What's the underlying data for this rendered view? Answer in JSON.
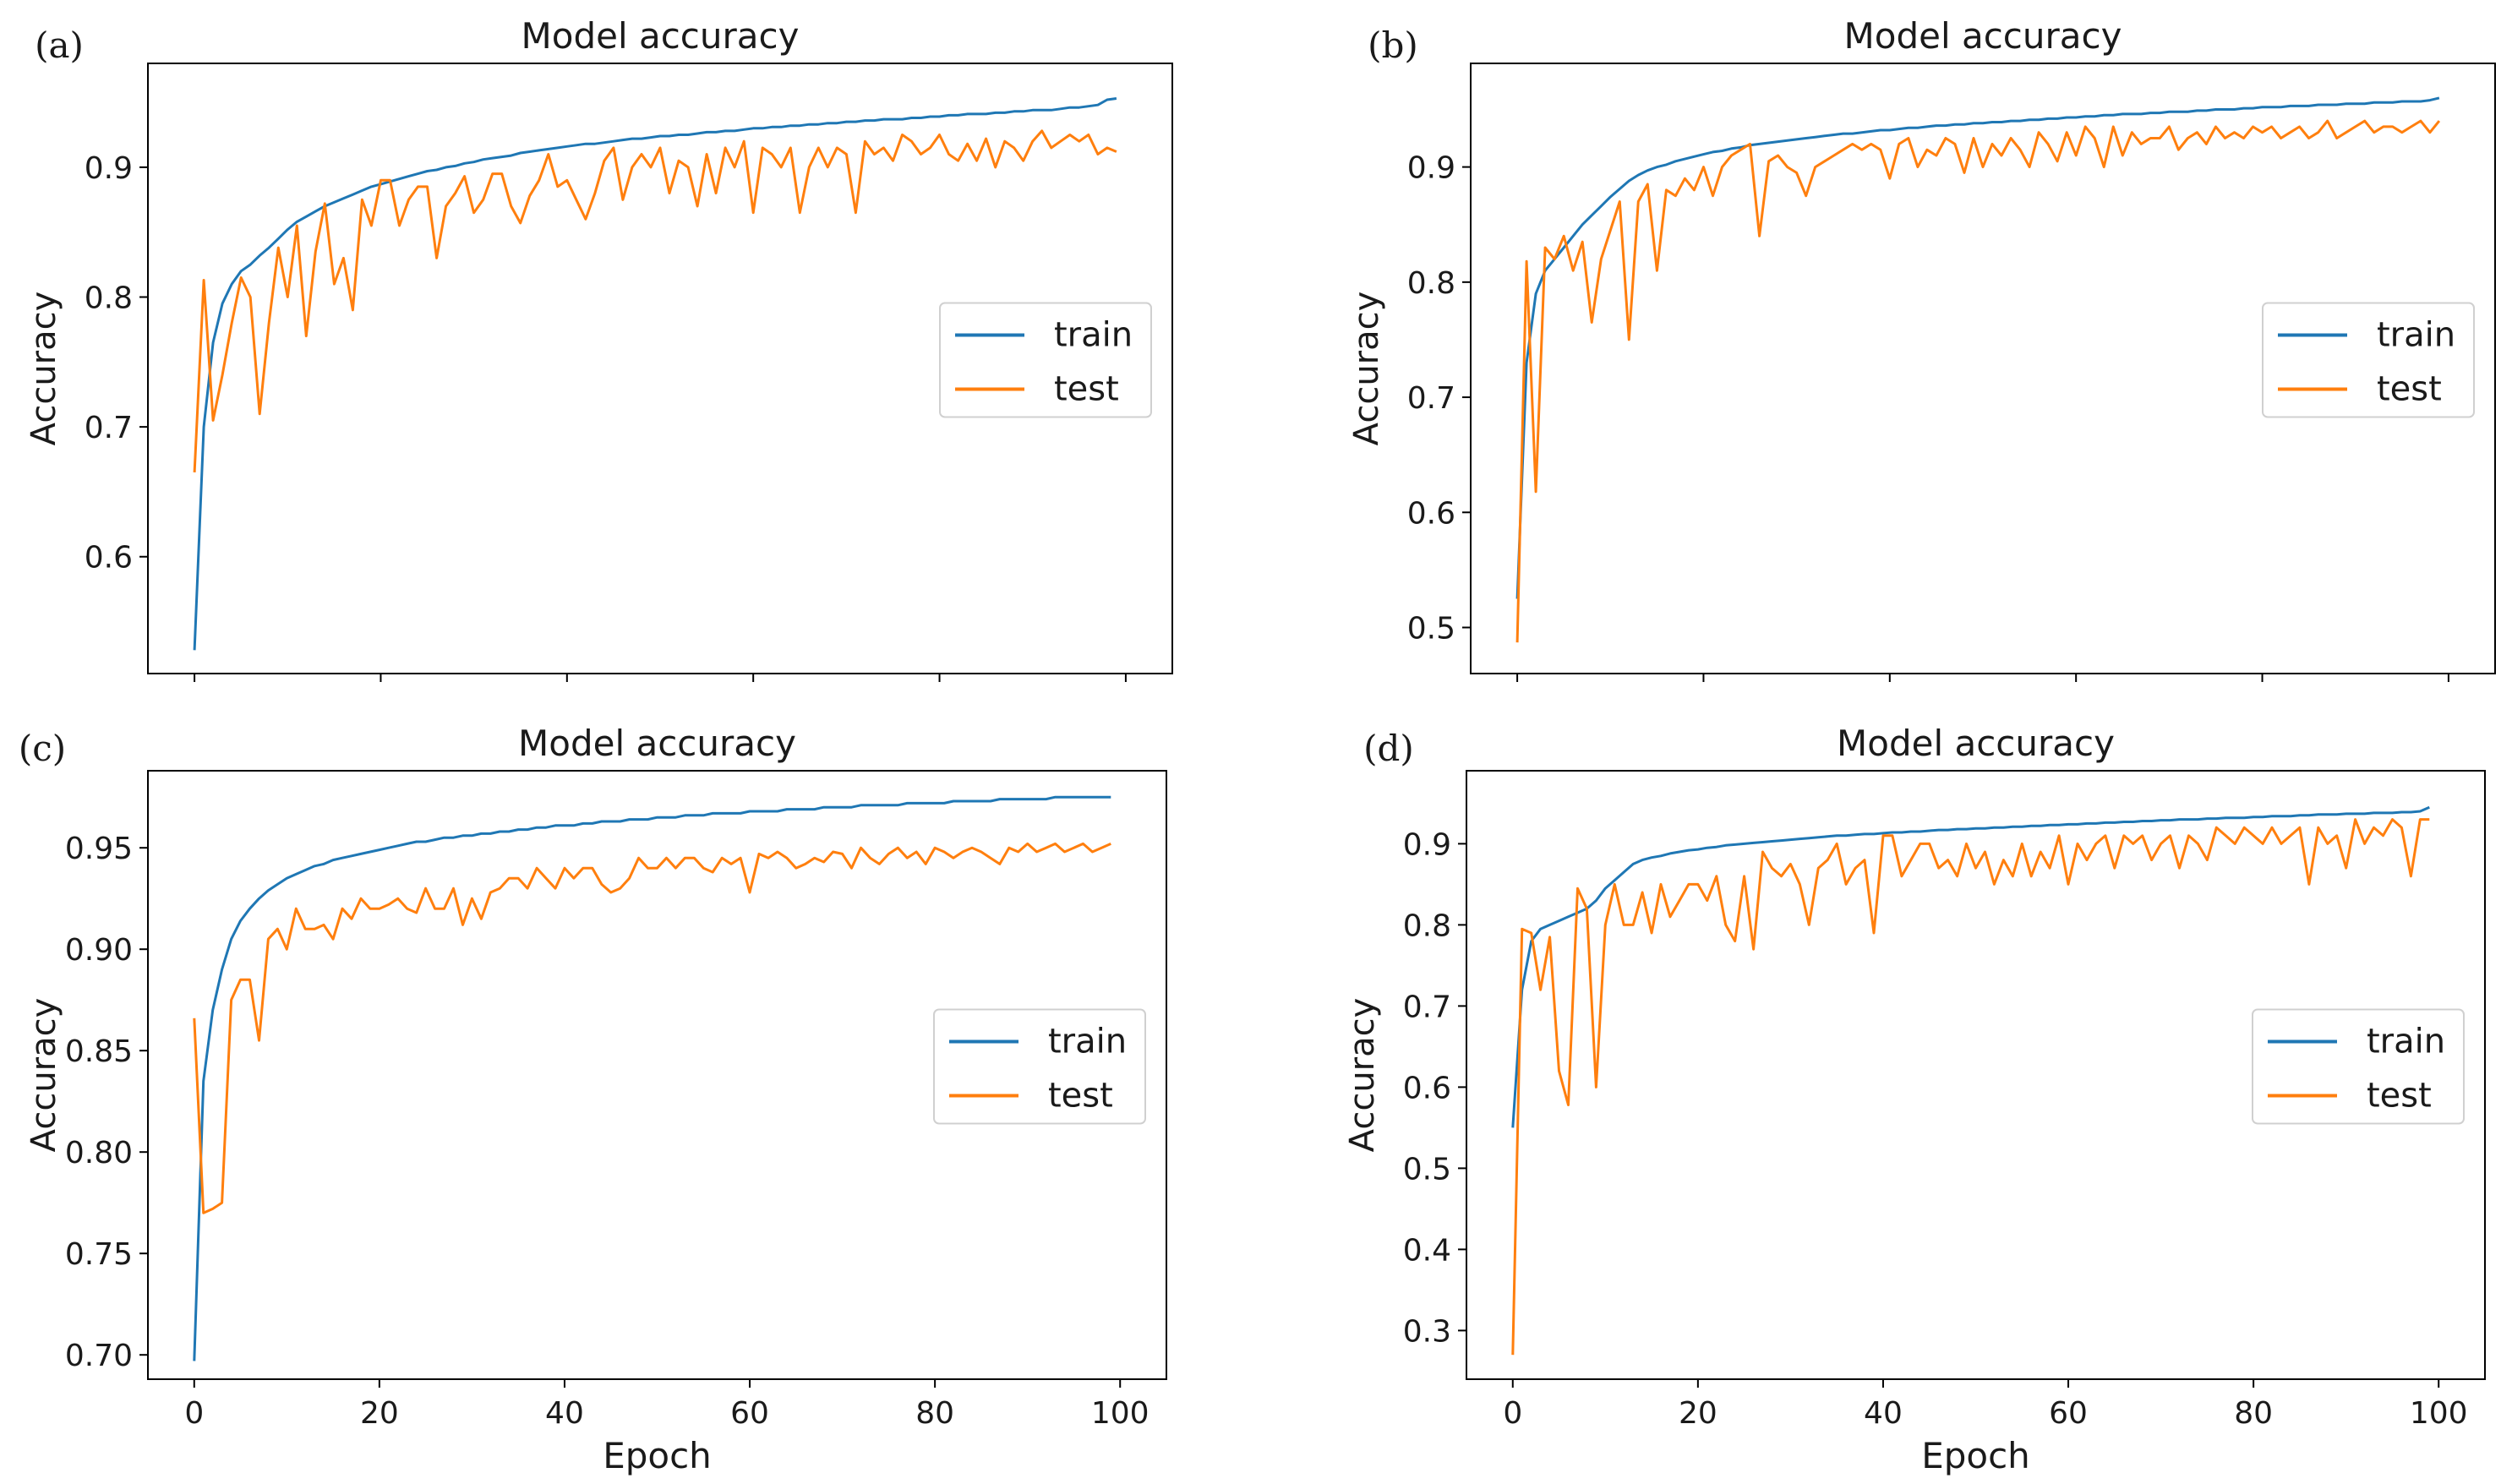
{
  "colors": {
    "train": "#1f77b4",
    "test": "#ff7f0e",
    "axis": "#000000",
    "background": "#ffffff"
  },
  "chart_data": [
    {
      "panel": "(a)",
      "type": "line",
      "title": "Model accuracy",
      "xlabel": "",
      "ylabel": "Accuracy",
      "xlim": [
        -5,
        105
      ],
      "ylim": [
        0.51,
        0.98
      ],
      "xticks": [
        0,
        20,
        40,
        60,
        80,
        100
      ],
      "xtick_labels_shown": false,
      "yticks": [
        0.6,
        0.7,
        0.8,
        0.9
      ],
      "ytick_labels": [
        "0.6",
        "0.7",
        "0.8",
        "0.9"
      ],
      "grid": false,
      "legend": "center-right",
      "series": [
        {
          "name": "train",
          "color": "#1f77b4",
          "x_start": 0,
          "x_step": 1,
          "values": [
            0.528,
            0.7,
            0.765,
            0.795,
            0.81,
            0.82,
            0.825,
            0.832,
            0.838,
            0.845,
            0.852,
            0.858,
            0.862,
            0.866,
            0.87,
            0.873,
            0.876,
            0.879,
            0.882,
            0.885,
            0.887,
            0.889,
            0.891,
            0.893,
            0.895,
            0.897,
            0.898,
            0.9,
            0.901,
            0.903,
            0.904,
            0.906,
            0.907,
            0.908,
            0.909,
            0.911,
            0.912,
            0.913,
            0.914,
            0.915,
            0.916,
            0.917,
            0.918,
            0.918,
            0.919,
            0.92,
            0.921,
            0.922,
            0.922,
            0.923,
            0.924,
            0.924,
            0.925,
            0.925,
            0.926,
            0.927,
            0.927,
            0.928,
            0.928,
            0.929,
            0.93,
            0.93,
            0.931,
            0.931,
            0.932,
            0.932,
            0.933,
            0.933,
            0.934,
            0.934,
            0.935,
            0.935,
            0.936,
            0.936,
            0.937,
            0.937,
            0.937,
            0.938,
            0.938,
            0.939,
            0.939,
            0.94,
            0.94,
            0.941,
            0.941,
            0.941,
            0.942,
            0.942,
            0.943,
            0.943,
            0.944,
            0.944,
            0.944,
            0.945,
            0.946,
            0.946,
            0.947,
            0.948,
            0.952,
            0.953
          ]
        },
        {
          "name": "test",
          "color": "#ff7f0e",
          "x_start": 0,
          "x_step": 1,
          "values": [
            0.665,
            0.813,
            0.705,
            0.74,
            0.78,
            0.815,
            0.8,
            0.71,
            0.78,
            0.838,
            0.8,
            0.855,
            0.77,
            0.835,
            0.872,
            0.81,
            0.83,
            0.79,
            0.875,
            0.855,
            0.89,
            0.89,
            0.855,
            0.875,
            0.885,
            0.885,
            0.83,
            0.87,
            0.88,
            0.893,
            0.865,
            0.875,
            0.895,
            0.895,
            0.87,
            0.857,
            0.878,
            0.89,
            0.91,
            0.885,
            0.89,
            0.875,
            0.86,
            0.88,
            0.905,
            0.915,
            0.875,
            0.9,
            0.91,
            0.9,
            0.915,
            0.88,
            0.905,
            0.9,
            0.87,
            0.91,
            0.88,
            0.915,
            0.9,
            0.92,
            0.865,
            0.915,
            0.91,
            0.9,
            0.915,
            0.865,
            0.9,
            0.915,
            0.9,
            0.915,
            0.91,
            0.865,
            0.92,
            0.91,
            0.915,
            0.905,
            0.925,
            0.92,
            0.91,
            0.915,
            0.925,
            0.91,
            0.905,
            0.918,
            0.905,
            0.922,
            0.9,
            0.92,
            0.915,
            0.905,
            0.92,
            0.928,
            0.915,
            0.92,
            0.925,
            0.92,
            0.925,
            0.91,
            0.915,
            0.912
          ]
        }
      ]
    },
    {
      "panel": "(b)",
      "type": "line",
      "title": "Model accuracy",
      "xlabel": "",
      "ylabel": "Accuracy",
      "xlim": [
        -5,
        105
      ],
      "ylim": [
        0.46,
        0.99
      ],
      "xticks": [
        0,
        20,
        40,
        60,
        80,
        100
      ],
      "xtick_labels_shown": false,
      "yticks": [
        0.5,
        0.6,
        0.7,
        0.8,
        0.9
      ],
      "ytick_labels": [
        "0.5",
        "0.6",
        "0.7",
        "0.8",
        "0.9"
      ],
      "grid": false,
      "legend": "center-right",
      "series": [
        {
          "name": "train",
          "color": "#1f77b4",
          "x_start": 0,
          "x_step": 1,
          "values": [
            0.525,
            0.73,
            0.79,
            0.81,
            0.82,
            0.83,
            0.84,
            0.85,
            0.858,
            0.866,
            0.874,
            0.881,
            0.888,
            0.893,
            0.897,
            0.9,
            0.902,
            0.905,
            0.907,
            0.909,
            0.911,
            0.913,
            0.914,
            0.916,
            0.917,
            0.919,
            0.92,
            0.921,
            0.922,
            0.923,
            0.924,
            0.925,
            0.926,
            0.927,
            0.928,
            0.929,
            0.929,
            0.93,
            0.931,
            0.932,
            0.932,
            0.933,
            0.934,
            0.934,
            0.935,
            0.936,
            0.936,
            0.937,
            0.937,
            0.938,
            0.938,
            0.939,
            0.939,
            0.94,
            0.94,
            0.941,
            0.941,
            0.942,
            0.942,
            0.943,
            0.943,
            0.944,
            0.944,
            0.945,
            0.945,
            0.946,
            0.946,
            0.946,
            0.947,
            0.947,
            0.948,
            0.948,
            0.948,
            0.949,
            0.949,
            0.95,
            0.95,
            0.95,
            0.951,
            0.951,
            0.952,
            0.952,
            0.952,
            0.953,
            0.953,
            0.953,
            0.954,
            0.954,
            0.954,
            0.955,
            0.955,
            0.955,
            0.956,
            0.956,
            0.956,
            0.957,
            0.957,
            0.957,
            0.958,
            0.96
          ]
        },
        {
          "name": "test",
          "color": "#ff7f0e",
          "x_start": 0,
          "x_step": 1,
          "values": [
            0.487,
            0.818,
            0.618,
            0.83,
            0.82,
            0.84,
            0.81,
            0.835,
            0.765,
            0.82,
            0.845,
            0.87,
            0.75,
            0.87,
            0.885,
            0.81,
            0.88,
            0.875,
            0.89,
            0.88,
            0.9,
            0.875,
            0.9,
            0.91,
            0.915,
            0.92,
            0.84,
            0.905,
            0.91,
            0.9,
            0.895,
            0.875,
            0.9,
            0.905,
            0.91,
            0.915,
            0.92,
            0.915,
            0.92,
            0.915,
            0.89,
            0.92,
            0.925,
            0.9,
            0.915,
            0.91,
            0.925,
            0.92,
            0.895,
            0.925,
            0.9,
            0.92,
            0.91,
            0.925,
            0.915,
            0.9,
            0.93,
            0.92,
            0.905,
            0.93,
            0.91,
            0.935,
            0.925,
            0.9,
            0.935,
            0.91,
            0.93,
            0.92,
            0.925,
            0.925,
            0.935,
            0.915,
            0.925,
            0.93,
            0.92,
            0.935,
            0.925,
            0.93,
            0.925,
            0.935,
            0.93,
            0.935,
            0.925,
            0.93,
            0.935,
            0.925,
            0.93,
            0.94,
            0.925,
            0.93,
            0.935,
            0.94,
            0.93,
            0.935,
            0.935,
            0.93,
            0.935,
            0.94,
            0.93,
            0.94
          ]
        }
      ]
    },
    {
      "panel": "(c)",
      "type": "line",
      "title": "Model accuracy",
      "xlabel": "Epoch",
      "ylabel": "Accuracy",
      "xlim": [
        -5,
        105
      ],
      "ylim": [
        0.688,
        0.988
      ],
      "xticks": [
        0,
        20,
        40,
        60,
        80,
        100
      ],
      "xtick_labels": [
        "0",
        "20",
        "40",
        "60",
        "80",
        "100"
      ],
      "xtick_labels_shown": true,
      "yticks": [
        0.7,
        0.75,
        0.8,
        0.85,
        0.9,
        0.95
      ],
      "ytick_labels": [
        "0.70",
        "0.75",
        "0.80",
        "0.85",
        "0.90",
        "0.95"
      ],
      "grid": false,
      "legend": "center-right",
      "series": [
        {
          "name": "train",
          "color": "#1f77b4",
          "x_start": 0,
          "x_step": 1,
          "values": [
            0.697,
            0.835,
            0.87,
            0.89,
            0.905,
            0.914,
            0.92,
            0.925,
            0.929,
            0.932,
            0.935,
            0.937,
            0.939,
            0.941,
            0.942,
            0.944,
            0.945,
            0.946,
            0.947,
            0.948,
            0.949,
            0.95,
            0.951,
            0.952,
            0.953,
            0.953,
            0.954,
            0.955,
            0.955,
            0.956,
            0.956,
            0.957,
            0.957,
            0.958,
            0.958,
            0.959,
            0.959,
            0.96,
            0.96,
            0.961,
            0.961,
            0.961,
            0.962,
            0.962,
            0.963,
            0.963,
            0.963,
            0.964,
            0.964,
            0.964,
            0.965,
            0.965,
            0.965,
            0.966,
            0.966,
            0.966,
            0.967,
            0.967,
            0.967,
            0.967,
            0.968,
            0.968,
            0.968,
            0.968,
            0.969,
            0.969,
            0.969,
            0.969,
            0.97,
            0.97,
            0.97,
            0.97,
            0.971,
            0.971,
            0.971,
            0.971,
            0.971,
            0.972,
            0.972,
            0.972,
            0.972,
            0.972,
            0.973,
            0.973,
            0.973,
            0.973,
            0.973,
            0.974,
            0.974,
            0.974,
            0.974,
            0.974,
            0.974,
            0.975,
            0.975,
            0.975,
            0.975,
            0.975,
            0.975,
            0.975
          ]
        },
        {
          "name": "test",
          "color": "#ff7f0e",
          "x_start": 0,
          "x_step": 1,
          "values": [
            0.866,
            0.77,
            0.772,
            0.775,
            0.875,
            0.885,
            0.885,
            0.855,
            0.905,
            0.91,
            0.9,
            0.92,
            0.91,
            0.91,
            0.912,
            0.905,
            0.92,
            0.915,
            0.925,
            0.92,
            0.92,
            0.922,
            0.925,
            0.92,
            0.918,
            0.93,
            0.92,
            0.92,
            0.93,
            0.912,
            0.925,
            0.915,
            0.928,
            0.93,
            0.935,
            0.935,
            0.93,
            0.94,
            0.935,
            0.93,
            0.94,
            0.935,
            0.94,
            0.94,
            0.932,
            0.928,
            0.93,
            0.935,
            0.945,
            0.94,
            0.94,
            0.945,
            0.94,
            0.945,
            0.945,
            0.94,
            0.938,
            0.945,
            0.942,
            0.945,
            0.928,
            0.947,
            0.945,
            0.948,
            0.945,
            0.94,
            0.942,
            0.945,
            0.943,
            0.948,
            0.947,
            0.94,
            0.95,
            0.945,
            0.942,
            0.947,
            0.95,
            0.945,
            0.948,
            0.942,
            0.95,
            0.948,
            0.945,
            0.948,
            0.95,
            0.948,
            0.945,
            0.942,
            0.95,
            0.948,
            0.952,
            0.948,
            0.95,
            0.952,
            0.948,
            0.95,
            0.952,
            0.948,
            0.95,
            0.952
          ]
        }
      ]
    },
    {
      "panel": "(d)",
      "type": "line",
      "title": "Model accuracy",
      "xlabel": "Epoch",
      "ylabel": "Accuracy",
      "xlim": [
        -5,
        105
      ],
      "ylim": [
        0.24,
        0.99
      ],
      "xticks": [
        0,
        20,
        40,
        60,
        80,
        100
      ],
      "xtick_labels": [
        "0",
        "20",
        "40",
        "60",
        "80",
        "100"
      ],
      "xtick_labels_shown": true,
      "yticks": [
        0.3,
        0.4,
        0.5,
        0.6,
        0.7,
        0.8,
        0.9
      ],
      "ytick_labels": [
        "0.3",
        "0.4",
        "0.5",
        "0.6",
        "0.7",
        "0.8",
        "0.9"
      ],
      "grid": false,
      "legend": "center-right",
      "series": [
        {
          "name": "train",
          "color": "#1f77b4",
          "x_start": 0,
          "x_step": 1,
          "values": [
            0.55,
            0.72,
            0.78,
            0.795,
            0.8,
            0.805,
            0.81,
            0.815,
            0.82,
            0.83,
            0.845,
            0.855,
            0.865,
            0.875,
            0.88,
            0.883,
            0.885,
            0.888,
            0.89,
            0.892,
            0.893,
            0.895,
            0.896,
            0.898,
            0.899,
            0.9,
            0.901,
            0.902,
            0.903,
            0.904,
            0.905,
            0.906,
            0.907,
            0.908,
            0.909,
            0.91,
            0.91,
            0.911,
            0.912,
            0.912,
            0.913,
            0.914,
            0.914,
            0.915,
            0.915,
            0.916,
            0.917,
            0.917,
            0.918,
            0.918,
            0.919,
            0.919,
            0.92,
            0.92,
            0.921,
            0.921,
            0.922,
            0.922,
            0.923,
            0.923,
            0.924,
            0.924,
            0.925,
            0.925,
            0.926,
            0.926,
            0.927,
            0.927,
            0.928,
            0.928,
            0.929,
            0.929,
            0.93,
            0.93,
            0.93,
            0.931,
            0.931,
            0.932,
            0.932,
            0.932,
            0.933,
            0.933,
            0.934,
            0.934,
            0.934,
            0.935,
            0.935,
            0.936,
            0.936,
            0.936,
            0.937,
            0.937,
            0.937,
            0.938,
            0.938,
            0.938,
            0.939,
            0.939,
            0.94,
            0.945
          ]
        },
        {
          "name": "test",
          "color": "#ff7f0e",
          "x_start": 0,
          "x_step": 1,
          "values": [
            0.27,
            0.795,
            0.79,
            0.72,
            0.785,
            0.62,
            0.578,
            0.845,
            0.82,
            0.6,
            0.8,
            0.85,
            0.8,
            0.8,
            0.84,
            0.79,
            0.85,
            0.81,
            0.83,
            0.85,
            0.85,
            0.83,
            0.86,
            0.8,
            0.78,
            0.86,
            0.77,
            0.89,
            0.87,
            0.86,
            0.875,
            0.85,
            0.8,
            0.87,
            0.88,
            0.9,
            0.85,
            0.87,
            0.88,
            0.79,
            0.91,
            0.91,
            0.86,
            0.88,
            0.9,
            0.9,
            0.87,
            0.88,
            0.86,
            0.9,
            0.87,
            0.89,
            0.85,
            0.88,
            0.86,
            0.9,
            0.86,
            0.89,
            0.87,
            0.91,
            0.85,
            0.9,
            0.88,
            0.9,
            0.91,
            0.87,
            0.91,
            0.9,
            0.91,
            0.88,
            0.9,
            0.91,
            0.87,
            0.91,
            0.9,
            0.88,
            0.92,
            0.91,
            0.9,
            0.92,
            0.91,
            0.9,
            0.92,
            0.9,
            0.91,
            0.92,
            0.85,
            0.92,
            0.9,
            0.91,
            0.87,
            0.93,
            0.9,
            0.92,
            0.91,
            0.93,
            0.92,
            0.86,
            0.93,
            0.93
          ]
        }
      ]
    }
  ]
}
